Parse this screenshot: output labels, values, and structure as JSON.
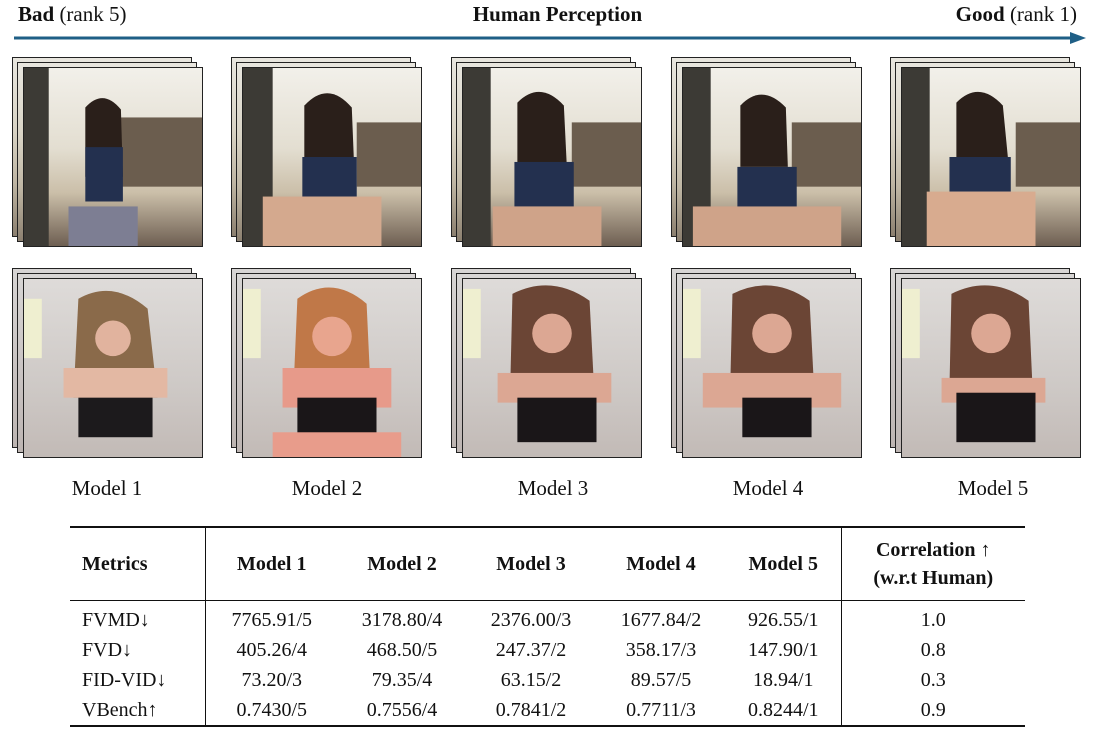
{
  "header": {
    "left_bold": "Bad",
    "left_rest": " (rank 5)",
    "center": "Human Perception",
    "right_bold": "Good",
    "right_rest": " (rank 1)"
  },
  "models": [
    "Model 1",
    "Model 2",
    "Model 3",
    "Model 4",
    "Model 5"
  ],
  "table": {
    "col_metrics": "Metrics",
    "col_models": [
      "Model 1",
      "Model 2",
      "Model 3",
      "Model 4",
      "Model 5"
    ],
    "col_corr_line1": "Correlation ↑",
    "col_corr_line2": "(w.r.t Human)",
    "rows": [
      {
        "metric": "FVMD↓",
        "values": [
          "7765.91/5",
          "3178.80/4",
          "2376.00/3",
          "1677.84/2",
          "926.55/1"
        ],
        "corr": "1.0"
      },
      {
        "metric": "FVD↓",
        "values": [
          "405.26/4",
          "468.50/5",
          "247.37/2",
          "358.17/3",
          "147.90/1"
        ],
        "corr": "0.8"
      },
      {
        "metric": "FID-VID↓",
        "values": [
          "73.20/3",
          "79.35/4",
          "63.15/2",
          "89.57/5",
          "18.94/1"
        ],
        "corr": "0.3"
      },
      {
        "metric": "VBench↑",
        "values": [
          "0.7430/5",
          "0.7556/4",
          "0.7841/2",
          "0.7711/3",
          "0.8244/1"
        ],
        "corr": "0.9"
      }
    ]
  },
  "colors": {
    "arrow": "#1f5f86"
  }
}
